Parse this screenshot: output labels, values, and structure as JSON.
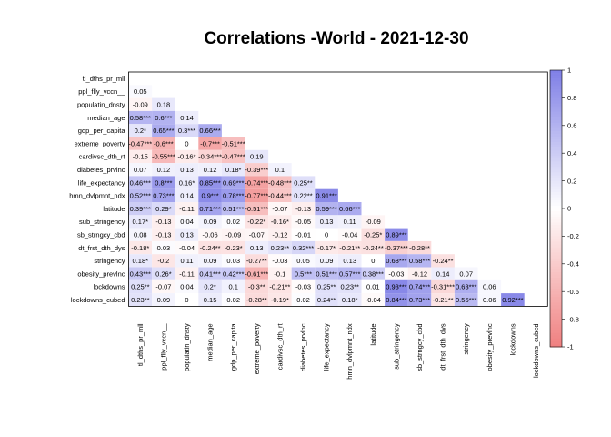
{
  "chart_data": {
    "type": "heatmap",
    "title": "Correlations -World -  2021-12-30",
    "variables": [
      "tl_dths_pr_mll",
      "ppl_flly_vccn__",
      "populatin_dnsty",
      "median_age",
      "gdp_per_capita",
      "extreme_poverty",
      "cardivsc_dth_rt",
      "diabetes_prvlnc",
      "life_expectancy",
      "hmn_dvlpmnt_ndx",
      "latitude",
      "sub_stringency",
      "sb_strngcy_cbd",
      "dt_frst_dth_dys",
      "stringency",
      "obesity_prevlnc",
      "lockdowns",
      "lockdowns_cubed"
    ],
    "lower_triangle": [
      [],
      [
        0.05
      ],
      [
        -0.09,
        0.18
      ],
      [
        0.58,
        0.6,
        0.14
      ],
      [
        0.2,
        0.65,
        0.3,
        0.66
      ],
      [
        -0.47,
        -0.6,
        0,
        -0.7,
        -0.51
      ],
      [
        -0.15,
        -0.55,
        -0.16,
        -0.34,
        -0.47,
        0.19
      ],
      [
        0.07,
        0.12,
        0.13,
        0.12,
        0.18,
        -0.39,
        0.1
      ],
      [
        0.46,
        0.8,
        0.16,
        0.85,
        0.69,
        -0.74,
        -0.48,
        0.25
      ],
      [
        0.52,
        0.73,
        0.14,
        0.9,
        0.78,
        -0.77,
        -0.44,
        0.22,
        0.91
      ],
      [
        0.39,
        0.29,
        -0.11,
        0.71,
        0.51,
        -0.51,
        -0.07,
        -0.13,
        0.59,
        0.66
      ],
      [
        0.17,
        -0.13,
        0.04,
        0.09,
        0.02,
        -0.22,
        -0.16,
        -0.05,
        0.13,
        0.11,
        -0.09
      ],
      [
        0.08,
        -0.13,
        0.13,
        -0.06,
        -0.09,
        -0.07,
        -0.12,
        -0.01,
        0,
        -0.04,
        -0.25,
        0.89
      ],
      [
        -0.18,
        0.03,
        -0.04,
        -0.24,
        -0.23,
        0.13,
        0.23,
        0.32,
        -0.17,
        -0.21,
        -0.24,
        -0.37,
        -0.28
      ],
      [
        0.18,
        -0.2,
        0.11,
        0.09,
        0.03,
        -0.27,
        -0.03,
        0.05,
        0.09,
        0.13,
        0,
        0.68,
        0.58,
        -0.24
      ],
      [
        0.43,
        0.26,
        -0.11,
        0.41,
        0.42,
        -0.61,
        -0.1,
        0.5,
        0.51,
        0.57,
        0.38,
        -0.03,
        -0.12,
        0.14,
        0.07
      ],
      [
        0.25,
        -0.07,
        0.04,
        0.2,
        0.1,
        -0.3,
        -0.21,
        -0.03,
        0.25,
        0.23,
        0.01,
        0.93,
        0.74,
        -0.31,
        0.63,
        0.06
      ],
      [
        0.23,
        0.09,
        0,
        0.15,
        0.02,
        -0.28,
        -0.19,
        0.02,
        0.24,
        0.18,
        -0.04,
        0.84,
        0.73,
        -0.21,
        0.55,
        0.06,
        0.92
      ]
    ],
    "labels": [
      [],
      [
        "0.05"
      ],
      [
        "-0.09",
        "0.18"
      ],
      [
        "0.58***",
        "0.6***",
        "0.14"
      ],
      [
        "0.2*",
        "0.65***",
        "0.3***",
        "0.66***"
      ],
      [
        "-0.47***",
        "-0.6***",
        "0",
        "-0.7***",
        "-0.51***"
      ],
      [
        "-0.15",
        "-0.55***",
        "-0.16*",
        "-0.34***",
        "-0.47***",
        "0.19"
      ],
      [
        "0.07",
        "0.12",
        "0.13",
        "0.12",
        "0.18*",
        "-0.39***",
        "0.1"
      ],
      [
        "0.46***",
        "0.8***",
        "0.16*",
        "0.85***",
        "0.69***",
        "-0.74***",
        "-0.48***",
        "0.25**"
      ],
      [
        "0.52***",
        "0.73***",
        "0.14",
        "0.9***",
        "0.78***",
        "-0.77***",
        "-0.44***",
        "0.22**",
        "0.91***"
      ],
      [
        "0.39***",
        "0.29*",
        "-0.11",
        "0.71***",
        "0.51***",
        "-0.51***",
        "-0.07",
        "-0.13",
        "0.59***",
        "0.66***"
      ],
      [
        "0.17*",
        "-0.13",
        "0.04",
        "0.09",
        "0.02",
        "-0.22*",
        "-0.16*",
        "-0.05",
        "0.13",
        "0.11",
        "-0.09"
      ],
      [
        "0.08",
        "-0.13",
        "0.13",
        "-0.06",
        "-0.09",
        "-0.07",
        "-0.12",
        "-0.01",
        "0",
        "-0.04",
        "-0.25*",
        "0.89***"
      ],
      [
        "-0.18*",
        "0.03",
        "-0.04",
        "-0.24**",
        "-0.23*",
        "0.13",
        "0.23**",
        "0.32***",
        "-0.17*",
        "-0.21**",
        "-0.24**",
        "-0.37***",
        "-0.28**"
      ],
      [
        "0.18*",
        "-0.2",
        "0.11",
        "0.09",
        "0.03",
        "-0.27**",
        "-0.03",
        "0.05",
        "0.09",
        "0.13",
        "0",
        "0.68***",
        "0.58***",
        "-0.24**"
      ],
      [
        "0.43***",
        "0.26*",
        "-0.11",
        "0.41***",
        "0.42***",
        "-0.61***",
        "-0.1",
        "0.5***",
        "0.51***",
        "0.57***",
        "0.38***",
        "-0.03",
        "-0.12",
        "0.14",
        "0.07"
      ],
      [
        "0.25**",
        "-0.07",
        "0.04",
        "0.2*",
        "0.1",
        "-0.3**",
        "-0.21**",
        "-0.03",
        "0.25**",
        "0.23**",
        "0.01",
        "0.93***",
        "0.74***",
        "-0.31***",
        "0.63***",
        "0.06"
      ],
      [
        "0.23**",
        "0.09",
        "0",
        "0.15",
        "0.02",
        "-0.28**",
        "-0.19*",
        "0.02",
        "0.24**",
        "0.18*",
        "-0.04",
        "0.84***",
        "0.73***",
        "-0.21**",
        "0.55***",
        "0.06",
        "0.92***"
      ]
    ],
    "colorbar": {
      "range": [
        -1,
        1
      ],
      "ticks": [
        "1",
        "0.8",
        "0.6",
        "0.4",
        "0.2",
        "0",
        "-0.2",
        "-0.4",
        "-0.6",
        "-0.8",
        "-1"
      ],
      "positive_color": "#7f7fe6",
      "negative_color": "#f08080"
    }
  }
}
